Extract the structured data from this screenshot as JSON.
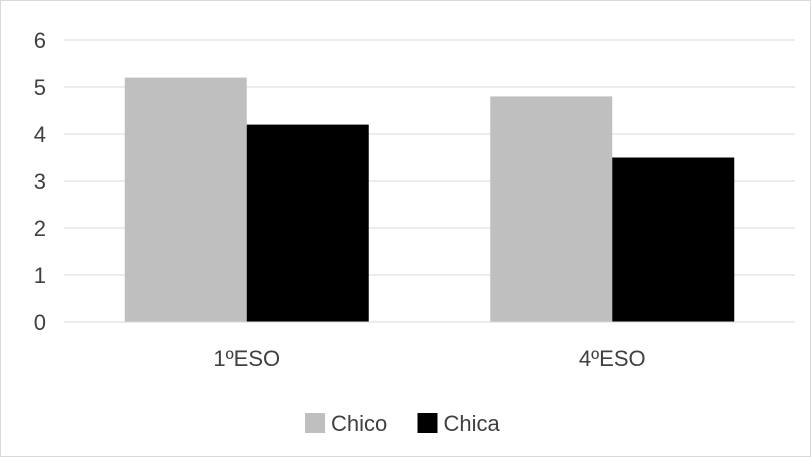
{
  "chart_data": {
    "type": "bar",
    "title": "",
    "xlabel": "",
    "ylabel": "",
    "categories": [
      "1ºESO",
      "4ºESO"
    ],
    "series": [
      {
        "name": "Chico",
        "values": [
          5.2,
          4.8
        ],
        "color": "#bfbfbf"
      },
      {
        "name": "Chica",
        "values": [
          4.2,
          3.5
        ],
        "color": "#000000"
      }
    ],
    "ylim": [
      0,
      6
    ],
    "yticks": [
      "0",
      "1",
      "2",
      "3",
      "4",
      "5",
      "6"
    ],
    "grid": true,
    "gridColor": "#d9d9d9",
    "legend": "bottom"
  }
}
